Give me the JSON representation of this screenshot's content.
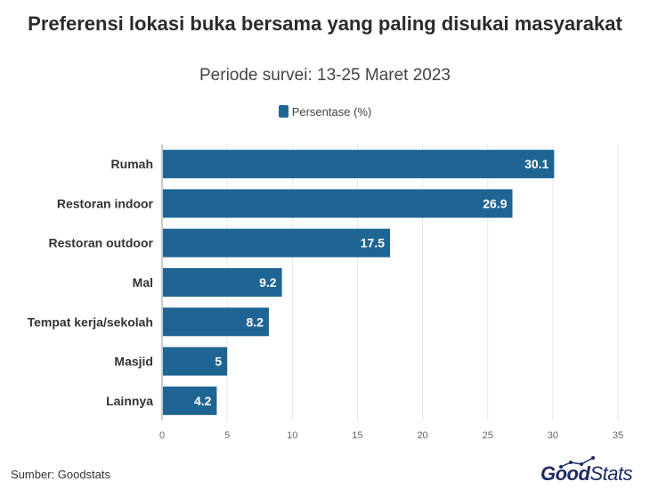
{
  "title": "Preferensi lokasi buka bersama yang paling disukai masyarakat",
  "subtitle": "Periode survei: 13-25 Maret 2023",
  "legend": {
    "label": "Persentase (%)"
  },
  "source": "Sumber: Goodstats",
  "brand": {
    "part1": "Good",
    "part2": "Stats"
  },
  "colors": {
    "bar": "#1f6593",
    "grid": "#e6e6e6",
    "title": "#2b2b2b"
  },
  "chart_data": {
    "type": "bar",
    "orientation": "horizontal",
    "categories": [
      "Rumah",
      "Restoran indoor",
      "Restoran outdoor",
      "Mal",
      "Tempat kerja/sekolah",
      "Masjid",
      "Lainnya"
    ],
    "series": [
      {
        "name": "Persentase (%)",
        "values": [
          30.1,
          26.9,
          17.5,
          9.2,
          8.2,
          5,
          4.2
        ]
      }
    ],
    "value_labels": [
      "30.1",
      "26.9",
      "17.5",
      "9.2",
      "8.2",
      "5",
      "4.2"
    ],
    "xlim": [
      0,
      35
    ],
    "xticks": [
      0,
      5,
      10,
      15,
      20,
      25,
      30,
      35
    ],
    "grid": "vertical",
    "legend_position": "top-center"
  }
}
